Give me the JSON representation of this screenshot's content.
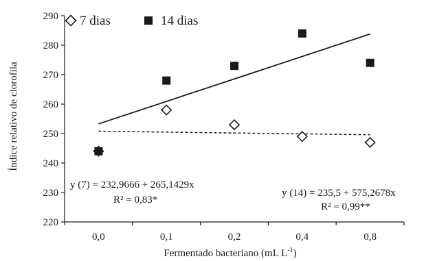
{
  "chart_data": {
    "type": "scatter",
    "categories": [
      "0,0",
      "0,1",
      "0,2",
      "0,4",
      "0,8"
    ],
    "xlabel": "Fermentado bacteriano (mL L-1)",
    "xlabel_base": "Fermentado bacteriano (mL L",
    "xlabel_sup": "-1",
    "xlabel_end": ")",
    "ylabel": "Índice relativo de clorofila",
    "ylim": [
      220,
      290
    ],
    "yticks": [
      "220",
      "230",
      "240",
      "250",
      "260",
      "270",
      "280",
      "290"
    ],
    "grid": false,
    "legend_position": "top-left",
    "series": [
      {
        "name": "7 dias",
        "marker": "open-diamond",
        "values": [
          244,
          258,
          253,
          249,
          247
        ],
        "trend": {
          "style": "dashed",
          "y_start": 250.8,
          "y_end": 249.6
        },
        "equation": "y (7) = 232,9666 + 265,1429x",
        "r2": "R² = 0,83*"
      },
      {
        "name": "14 dias",
        "marker": "filled-square",
        "values": [
          244,
          268,
          273,
          284,
          274
        ],
        "trend": {
          "style": "solid",
          "y_start": 253.3,
          "y_end": 283.8
        },
        "equation": "y (14) = 235,5 + 575,2678x",
        "r2": "R² = 0,99**"
      }
    ],
    "colors": {
      "ink": "#1a1a1a",
      "background": "#ffffff"
    }
  }
}
